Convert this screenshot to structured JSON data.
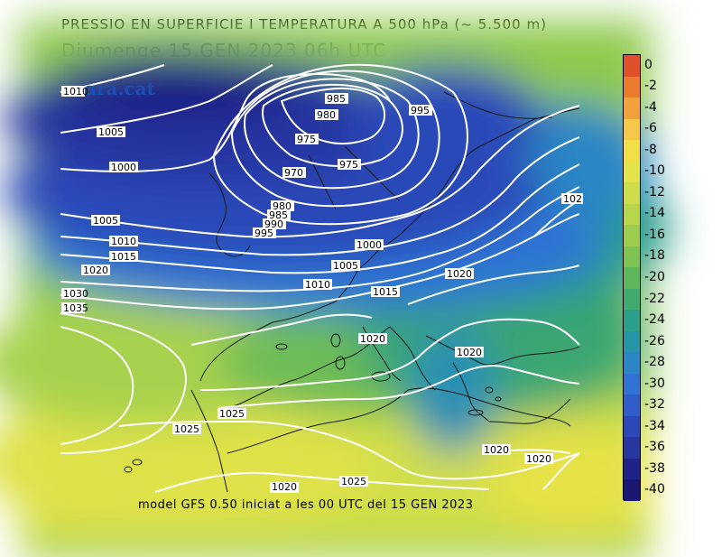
{
  "header": {
    "title": "PRESSIO EN SUPERFICIE I TEMPERATURA A 500 hPa (~ 5.500 m)",
    "subtitle": "Diumenge  15.GEN.2023 06h  UTC"
  },
  "footer": "model GFS 0.50 iniciat a les 00 UTC del 15 GEN 2023",
  "watermark": "ara.cat",
  "colorbar": {
    "labels": [
      "0",
      "-2",
      "-4",
      "-6",
      "-8",
      "-10",
      "-12",
      "-14",
      "-16",
      "-18",
      "-20",
      "-22",
      "-24",
      "-26",
      "-28",
      "-30",
      "-32",
      "-34",
      "-36",
      "-38",
      "-40"
    ],
    "colors": [
      "#e0502a",
      "#eb7a2d",
      "#f1a23a",
      "#f5c848",
      "#f2de45",
      "#e6e34a",
      "#cfdd4a",
      "#b7d64c",
      "#9ccd4e",
      "#7fc353",
      "#5fb75b",
      "#3faa6d",
      "#2a9f8a",
      "#2596a6",
      "#2a86c4",
      "#2f74d4",
      "#2f5ecb",
      "#2c48b8",
      "#2836a0",
      "#1f2287",
      "#1a1672"
    ]
  },
  "isobar_labels": [
    "1010",
    "1005",
    "1000",
    "985",
    "980",
    "975",
    "970",
    "975",
    "995",
    "980",
    "985",
    "990",
    "995",
    "1005",
    "1010",
    "1015",
    "1020",
    "1000",
    "1005",
    "1010",
    "1015",
    "1020",
    "1030",
    "1035",
    "1020",
    "1020",
    "1025",
    "1025",
    "1020",
    "1025",
    "1020",
    "1020",
    "102"
  ]
}
